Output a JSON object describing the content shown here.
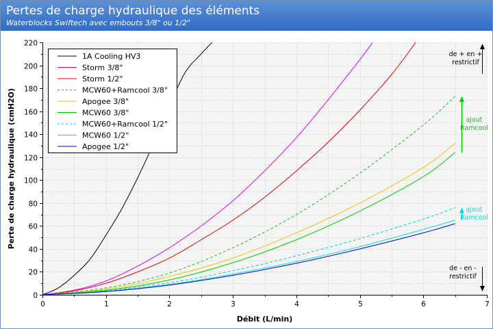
{
  "header": {
    "title": "Pertes de charge hydraulique des éléments",
    "subtitle": "Waterblocks Swiftech avec embouts 3/8\" ou 1/2\""
  },
  "chart_data": {
    "type": "line",
    "xlabel": "Débit (L/min)",
    "ylabel": "Perte de charge hydraulique (cmH2O)",
    "xlim": [
      0,
      7
    ],
    "ylim": [
      0,
      220
    ],
    "xticks": [
      "0",
      "1",
      "2",
      "3",
      "4",
      "5",
      "6",
      "7"
    ],
    "yticks": [
      "0",
      "20",
      "40",
      "60",
      "80",
      "100",
      "120",
      "140",
      "160",
      "180",
      "200",
      "220"
    ],
    "grid": true,
    "legend_position": "top-left",
    "series": [
      {
        "name": "1A Cooling HV3",
        "color": "#000000",
        "dashed": false,
        "x": [
          0,
          0.25,
          0.5,
          0.75,
          1,
          1.25,
          1.5,
          1.75,
          2,
          2.25,
          2.5,
          2.67
        ],
        "y": [
          0,
          6,
          17,
          31,
          52,
          75,
          102,
          132,
          165,
          194,
          210,
          220
        ]
      },
      {
        "name": "Storm 3/8\"",
        "color": "#e000e0",
        "dashed": false,
        "x": [
          0,
          0.5,
          1,
          1.5,
          2,
          2.5,
          3,
          3.5,
          4,
          4.5,
          5,
          5.2
        ],
        "y": [
          0,
          4,
          12,
          25,
          41,
          60,
          82,
          108,
          137,
          170,
          205,
          220
        ]
      },
      {
        "name": "Storm 1/2\"",
        "color": "#e00000",
        "dashed": false,
        "x": [
          0,
          0.5,
          1,
          1.5,
          2,
          2.5,
          3,
          3.5,
          4,
          4.5,
          5,
          5.5,
          5.88
        ],
        "y": [
          0,
          3.5,
          10,
          20,
          32,
          48,
          65,
          85,
          108,
          133,
          161,
          192,
          220
        ]
      },
      {
        "name": "MCW60+Ramcool 3/8\"",
        "color": "#22bb22",
        "dashed": true,
        "x": [
          0,
          1,
          2,
          3,
          4,
          5,
          6,
          6.5
        ],
        "y": [
          0,
          6,
          19,
          41,
          70,
          106,
          148,
          173
        ]
      },
      {
        "name": "Apogee 3/8\"",
        "color": "#f0c000",
        "dashed": false,
        "x": [
          0,
          1,
          2,
          3,
          4,
          5,
          6,
          6.5
        ],
        "y": [
          0,
          5,
          16,
          32,
          54,
          80,
          111,
          132
        ]
      },
      {
        "name": "MCW60 3/8\"",
        "color": "#00cc00",
        "dashed": false,
        "x": [
          0,
          1,
          2,
          3,
          4,
          5,
          6,
          6.5
        ],
        "y": [
          0,
          4,
          13,
          28,
          48,
          73,
          103,
          124
        ]
      },
      {
        "name": "MCW60+Ramcool 1/2\"",
        "color": "#00cccc",
        "dashed": true,
        "x": [
          0,
          1,
          2,
          3,
          4,
          5,
          6,
          6.5
        ],
        "y": [
          0,
          3.5,
          10.5,
          21,
          34,
          49,
          66,
          76
        ]
      },
      {
        "name": "MCW60 1/2\"",
        "color": "#00e0e0",
        "dashed": false,
        "x": [
          0,
          1,
          2,
          3,
          4,
          5,
          6,
          6.5
        ],
        "y": [
          0,
          3,
          9,
          18,
          29,
          42,
          57,
          65
        ]
      },
      {
        "name": "Apogee 1/2\"",
        "color": "#0000cc",
        "dashed": false,
        "x": [
          0,
          1,
          2,
          3,
          4,
          5,
          6,
          6.5
        ],
        "y": [
          0,
          2.8,
          8.5,
          17,
          27.5,
          40,
          54,
          62
        ]
      }
    ],
    "annotations": {
      "more_restrictive": [
        "de + en +",
        "restrictif"
      ],
      "less_restrictive": [
        "de - en -",
        "restrictif"
      ],
      "ramcool_label_green": [
        "ajout",
        "Ramcool"
      ],
      "ramcool_label_cyan": [
        "ajout",
        "Ramcool"
      ],
      "ramcool_arrow_green": {
        "x": 6.6,
        "y_from": 124,
        "y_to": 173,
        "color": "#00cc00"
      },
      "ramcool_arrow_cyan": {
        "x": 6.6,
        "y_from": 65,
        "y_to": 76,
        "color": "#00dddd"
      }
    }
  }
}
